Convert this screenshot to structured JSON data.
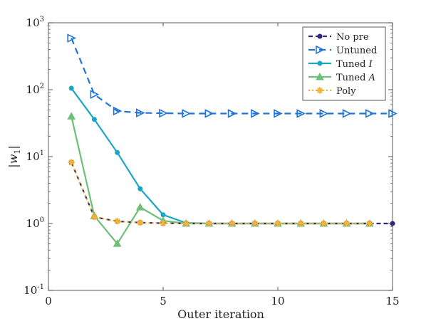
{
  "chart_data": {
    "type": "line",
    "title": "",
    "xlabel": "Outer iteration",
    "ylabel": "|w",
    "ylabel_sub": "1",
    "ylabel_close": "|",
    "xlim": [
      0,
      15
    ],
    "ylim": [
      0.1,
      1000
    ],
    "yscale": "log",
    "xticks": [
      0,
      5,
      10,
      15
    ],
    "yticks": [
      {
        "value": 0.1,
        "base": "10",
        "exp": "-1"
      },
      {
        "value": 1,
        "base": "10",
        "exp": "0"
      },
      {
        "value": 10,
        "base": "10",
        "exp": "1"
      },
      {
        "value": 100,
        "base": "10",
        "exp": "2"
      },
      {
        "value": 1000,
        "base": "10",
        "exp": "3"
      }
    ],
    "grid": false,
    "legend_position": "top-right",
    "series": [
      {
        "name": "No pre",
        "legend_italic": "",
        "color": "#2b2a7a",
        "dash": "6,4",
        "marker": "circle",
        "x": [
          1,
          2,
          3,
          4,
          5,
          6,
          7,
          8,
          9,
          10,
          11,
          12,
          13,
          14,
          15
        ],
        "y": [
          8.2,
          1.25,
          1.08,
          1.03,
          1.01,
          1.0,
          1.0,
          1.0,
          1.0,
          1.0,
          1.0,
          1.0,
          1.0,
          1.0,
          1.0
        ]
      },
      {
        "name": "Untuned",
        "legend_italic": "",
        "color": "#1f74d8",
        "dash": "9,6",
        "marker": "triangle-right",
        "x": [
          1,
          2,
          3,
          4,
          5,
          6,
          7,
          8,
          9,
          10,
          11,
          12,
          13,
          14,
          15
        ],
        "y": [
          590,
          85,
          48,
          45,
          44.5,
          44,
          44,
          44,
          44,
          44,
          44,
          44,
          44,
          44,
          44
        ]
      },
      {
        "name": "Tuned ",
        "legend_italic": "I",
        "color": "#1aa5c4",
        "dash": "",
        "marker": "circle",
        "x": [
          1,
          2,
          3,
          4,
          5,
          6,
          7,
          8,
          9,
          10,
          11,
          12,
          13,
          14
        ],
        "y": [
          105,
          36,
          11.5,
          3.3,
          1.35,
          1.02,
          1.0,
          1.0,
          1.0,
          1.0,
          1.0,
          1.0,
          1.0,
          1.0
        ]
      },
      {
        "name": "Tuned ",
        "legend_italic": "A",
        "color": "#6dbf77",
        "dash": "",
        "marker": "triangle-up",
        "x": [
          1,
          2,
          3,
          4,
          5,
          6,
          7,
          8,
          9,
          10,
          11,
          12,
          13,
          14
        ],
        "y": [
          40,
          1.3,
          0.5,
          1.75,
          1.1,
          1.0,
          1.0,
          1.0,
          1.0,
          1.0,
          1.0,
          1.0,
          1.0,
          1.0
        ]
      },
      {
        "name": "Poly",
        "legend_italic": "",
        "color": "#f2b33d",
        "dash": "2,3",
        "marker": "star",
        "x": [
          1,
          2,
          3,
          4,
          5,
          6,
          7,
          8,
          9,
          10,
          11,
          12,
          13,
          14
        ],
        "y": [
          8.2,
          1.25,
          1.08,
          1.03,
          1.01,
          1.0,
          1.0,
          1.0,
          1.0,
          1.0,
          1.0,
          1.0,
          1.0,
          1.0
        ]
      }
    ]
  }
}
